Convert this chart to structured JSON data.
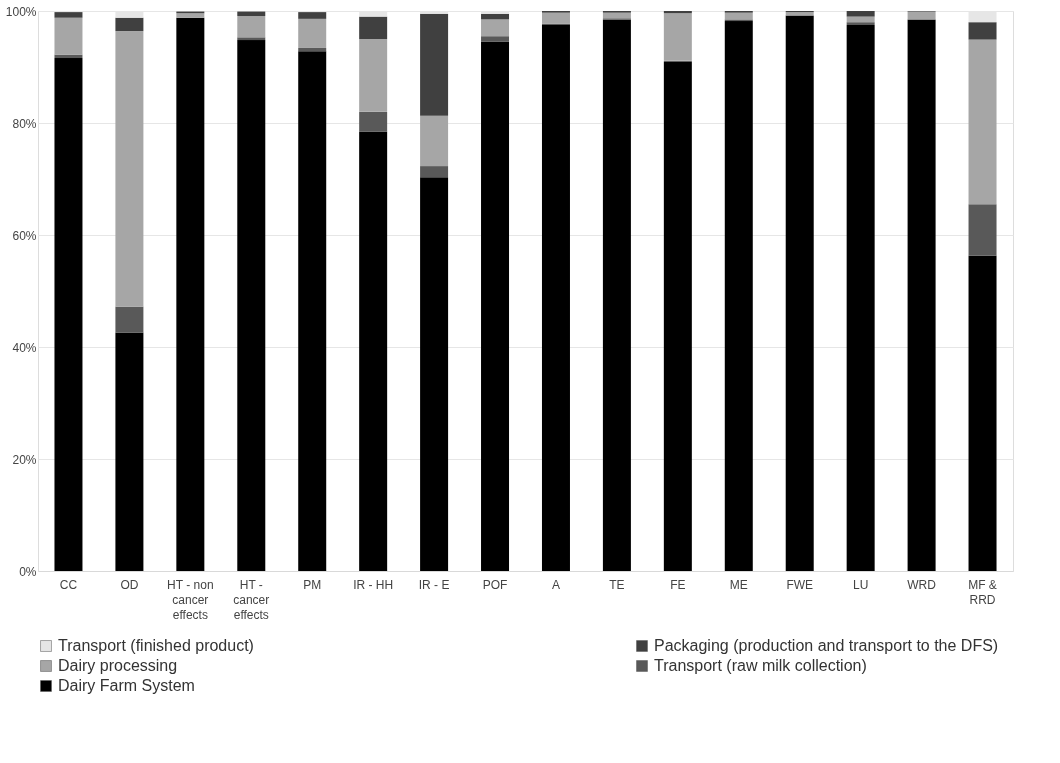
{
  "chart_data": {
    "type": "bar",
    "stacked": true,
    "categories": [
      "CC",
      "OD",
      "HT - non\ncancer\neffects",
      "HT -\ncancer\neffects",
      "PM",
      "IR - HH",
      "IR - E",
      "POF",
      "A",
      "TE",
      "FE",
      "ME",
      "FWE",
      "LU",
      "WRD",
      "MF &\nRRD"
    ],
    "series": [
      {
        "name": "Dairy Farm System",
        "color": "#000000",
        "values": [
          91.6,
          42.6,
          98.8,
          94.8,
          92.8,
          78.5,
          70.3,
          94.5,
          97.5,
          98.5,
          90.9,
          98.2,
          99.2,
          97.5,
          98.5,
          56.3
        ]
      },
      {
        "name": "Transport (raw milk collection)",
        "color": "#595959",
        "values": [
          0.6,
          4.6,
          0,
          0.5,
          0.6,
          3.5,
          2.0,
          1.0,
          0.2,
          0.2,
          0.2,
          0.3,
          0,
          0.5,
          0,
          9.2
        ]
      },
      {
        "name": "Dairy processing",
        "color": "#a6a6a6",
        "values": [
          6.6,
          49.2,
          0.8,
          3.8,
          5.2,
          13.0,
          9.0,
          3.0,
          2.0,
          1.0,
          8.5,
          1.2,
          0.6,
          1.0,
          1.4,
          29.4
        ]
      },
      {
        "name": "Packaging (production and transport to the DFS)",
        "color": "#404040",
        "values": [
          1.0,
          2.4,
          0.3,
          0.8,
          1.2,
          4.0,
          18.2,
          1.0,
          0.3,
          0.3,
          0.4,
          0.3,
          0.2,
          1.0,
          0.1,
          3.1
        ]
      },
      {
        "name": "Transport (finished product)",
        "color": "#e6e6e6",
        "values": [
          null,
          1.2,
          null,
          null,
          null,
          1.0,
          0.5,
          0.5,
          0,
          0,
          0,
          0,
          0,
          0,
          0,
          2.0
        ]
      }
    ],
    "ylim": [
      0,
      100
    ],
    "yticks": [
      {
        "value": 0,
        "label": "0%"
      },
      {
        "value": 20,
        "label": "20%"
      },
      {
        "value": 40,
        "label": "40%"
      },
      {
        "value": 60,
        "label": "60%"
      },
      {
        "value": 80,
        "label": "80%"
      },
      {
        "value": 100,
        "label": "100%"
      }
    ],
    "grid": "y",
    "legend": "bottom"
  }
}
